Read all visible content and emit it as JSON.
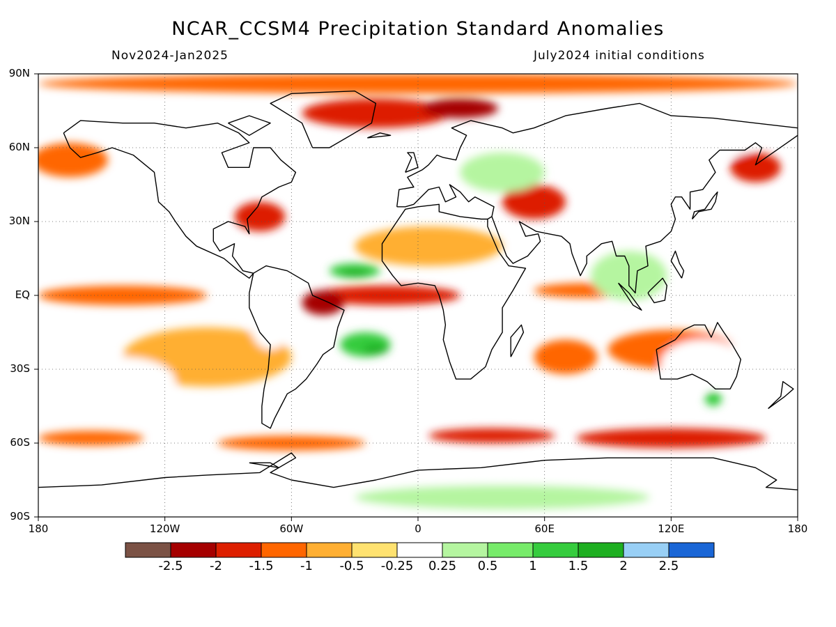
{
  "title": "NCAR_CCSM4 Precipitation Standard Anomalies",
  "season": "Nov2024-Jan2025",
  "init": "July2024 initial conditions",
  "map": {
    "lon_range": [
      -180,
      180
    ],
    "lat_range": [
      -90,
      90
    ],
    "lat_labels": [
      {
        "lat": 90,
        "text": "90N"
      },
      {
        "lat": 60,
        "text": "60N"
      },
      {
        "lat": 30,
        "text": "30N"
      },
      {
        "lat": 0,
        "text": "EQ"
      },
      {
        "lat": -30,
        "text": "30S"
      },
      {
        "lat": -60,
        "text": "60S"
      },
      {
        "lat": -90,
        "text": "90S"
      }
    ],
    "lon_labels": [
      {
        "lon": -180,
        "text": "180"
      },
      {
        "lon": -120,
        "text": "120W"
      },
      {
        "lon": -60,
        "text": "60W"
      },
      {
        "lon": 0,
        "text": "0"
      },
      {
        "lon": 60,
        "text": "60E"
      },
      {
        "lon": 120,
        "text": "120E"
      },
      {
        "lon": 180,
        "text": "180"
      }
    ],
    "gridlines": "dotted",
    "anomaly_regions": [
      {
        "lon": 0,
        "lat": 86,
        "rx": 180,
        "ry": 4,
        "level": 3
      },
      {
        "lon": -20,
        "lat": 74,
        "rx": 35,
        "ry": 6,
        "level": 2
      },
      {
        "lon": 20,
        "lat": 76,
        "rx": 18,
        "ry": 4,
        "level": 1
      },
      {
        "lon": -140,
        "lat": 0,
        "rx": 40,
        "ry": 4,
        "level": 3
      },
      {
        "lon": -15,
        "lat": 0,
        "rx": 35,
        "ry": 4,
        "level": 2
      },
      {
        "lon": -45,
        "lat": -3,
        "rx": 10,
        "ry": 5,
        "level": 1
      },
      {
        "lon": 80,
        "lat": 2,
        "rx": 25,
        "ry": 3,
        "level": 3
      },
      {
        "lon": 55,
        "lat": 38,
        "rx": 15,
        "ry": 7,
        "level": 2
      },
      {
        "lon": 120,
        "lat": -22,
        "rx": 30,
        "ry": 8,
        "level": 3
      },
      {
        "lon": 70,
        "lat": -25,
        "rx": 15,
        "ry": 7,
        "level": 3
      },
      {
        "lon": 120,
        "lat": -58,
        "rx": 45,
        "ry": 4,
        "level": 2
      },
      {
        "lon": 35,
        "lat": -57,
        "rx": 30,
        "ry": 3,
        "level": 2
      },
      {
        "lon": -60,
        "lat": -60,
        "rx": 35,
        "ry": 3,
        "level": 3
      },
      {
        "lon": -155,
        "lat": -58,
        "rx": 25,
        "ry": 3,
        "level": 3
      },
      {
        "lon": -75,
        "lat": 32,
        "rx": 12,
        "ry": 6,
        "level": 2
      },
      {
        "lon": -165,
        "lat": 55,
        "rx": 18,
        "ry": 7,
        "level": 3
      },
      {
        "lon": 160,
        "lat": 52,
        "rx": 12,
        "ry": 6,
        "level": 2
      },
      {
        "lon": 5,
        "lat": 20,
        "rx": 35,
        "ry": 8,
        "level": 4
      },
      {
        "lon": -100,
        "lat": -25,
        "rx": 40,
        "ry": 12,
        "level": 4
      },
      {
        "lon": -25,
        "lat": -20,
        "rx": 12,
        "ry": 5,
        "level": 9
      },
      {
        "lon": -20,
        "lat": -22,
        "rx": 6,
        "ry": 2,
        "level": 10
      },
      {
        "lon": -30,
        "lat": 10,
        "rx": 12,
        "ry": 3,
        "level": 9
      },
      {
        "lon": -30,
        "lat": 9,
        "rx": 7,
        "ry": 1.5,
        "level": 10
      },
      {
        "lon": 40,
        "lat": 50,
        "rx": 20,
        "ry": 8,
        "level": 7
      },
      {
        "lon": 120,
        "lat": 62,
        "rx": 40,
        "ry": 8,
        "level": 6
      },
      {
        "lon": -140,
        "lat": -35,
        "rx": 25,
        "ry": 10,
        "level": 6
      },
      {
        "lon": 0,
        "lat": -80,
        "rx": 180,
        "ry": 8,
        "level": 6
      },
      {
        "lon": 40,
        "lat": -82,
        "rx": 70,
        "ry": 5,
        "level": 7
      },
      {
        "lon": 100,
        "lat": 8,
        "rx": 18,
        "ry": 10,
        "level": 7
      },
      {
        "lon": -70,
        "lat": -10,
        "rx": 10,
        "ry": 12,
        "level": 6
      },
      {
        "lon": 135,
        "lat": -28,
        "rx": 20,
        "ry": 10,
        "level": 6
      },
      {
        "lon": 140,
        "lat": -42,
        "rx": 4,
        "ry": 3,
        "level": 9
      }
    ]
  },
  "legend": {
    "colors": [
      "#7b5245",
      "#a50000",
      "#dd1f00",
      "#ff6600",
      "#ffaf33",
      "#ffe270",
      "#ffffff",
      "#b5f5a0",
      "#77eb6a",
      "#36cc3e",
      "#1eaf21",
      "#98cff5",
      "#1a66d6"
    ],
    "labels": [
      "-2.5",
      "-2",
      "-1.5",
      "-1",
      "-0.5",
      "-0.25",
      "0.25",
      "0.5",
      "1",
      "1.5",
      "2",
      "2.5"
    ]
  }
}
